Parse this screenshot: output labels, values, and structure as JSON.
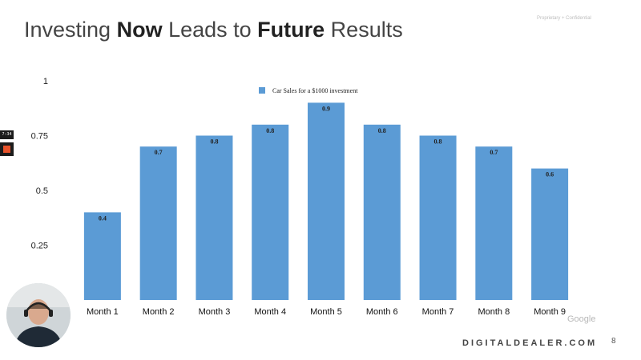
{
  "slide": {
    "title_prefix": "Investing ",
    "title_bold_1": "Now",
    "title_middle": " Leads to ",
    "title_bold_2": "Future",
    "title_suffix": " Results",
    "confidential": "Proprietary + Confidential",
    "google_mark": "Google",
    "footer_brand": "DIGITALDEALER.COM",
    "page_number": "8"
  },
  "video_overlay": {
    "timer": "7:34"
  },
  "chart_data": {
    "type": "bar",
    "categories": [
      "Month 1",
      "Month 2",
      "Month 3",
      "Month 4",
      "Month 5",
      "Month 6",
      "Month 7",
      "Month 8",
      "Month 9"
    ],
    "series": [
      {
        "name": "Car Sales for a $1000 investment",
        "values": [
          0.4,
          0.7,
          0.75,
          0.8,
          0.9,
          0.8,
          0.75,
          0.7,
          0.6
        ],
        "labels": [
          "0.4",
          "0.7",
          "0.8",
          "0.8",
          "0.9",
          "0.8",
          "0.8",
          "0.7",
          "0.6"
        ],
        "color": "#5b9bd5"
      }
    ],
    "y_ticks": [
      "0.25",
      "0.5",
      "0.75",
      "1"
    ],
    "ylim": [
      0,
      1
    ],
    "grid": false,
    "legend_position": "top-center"
  }
}
